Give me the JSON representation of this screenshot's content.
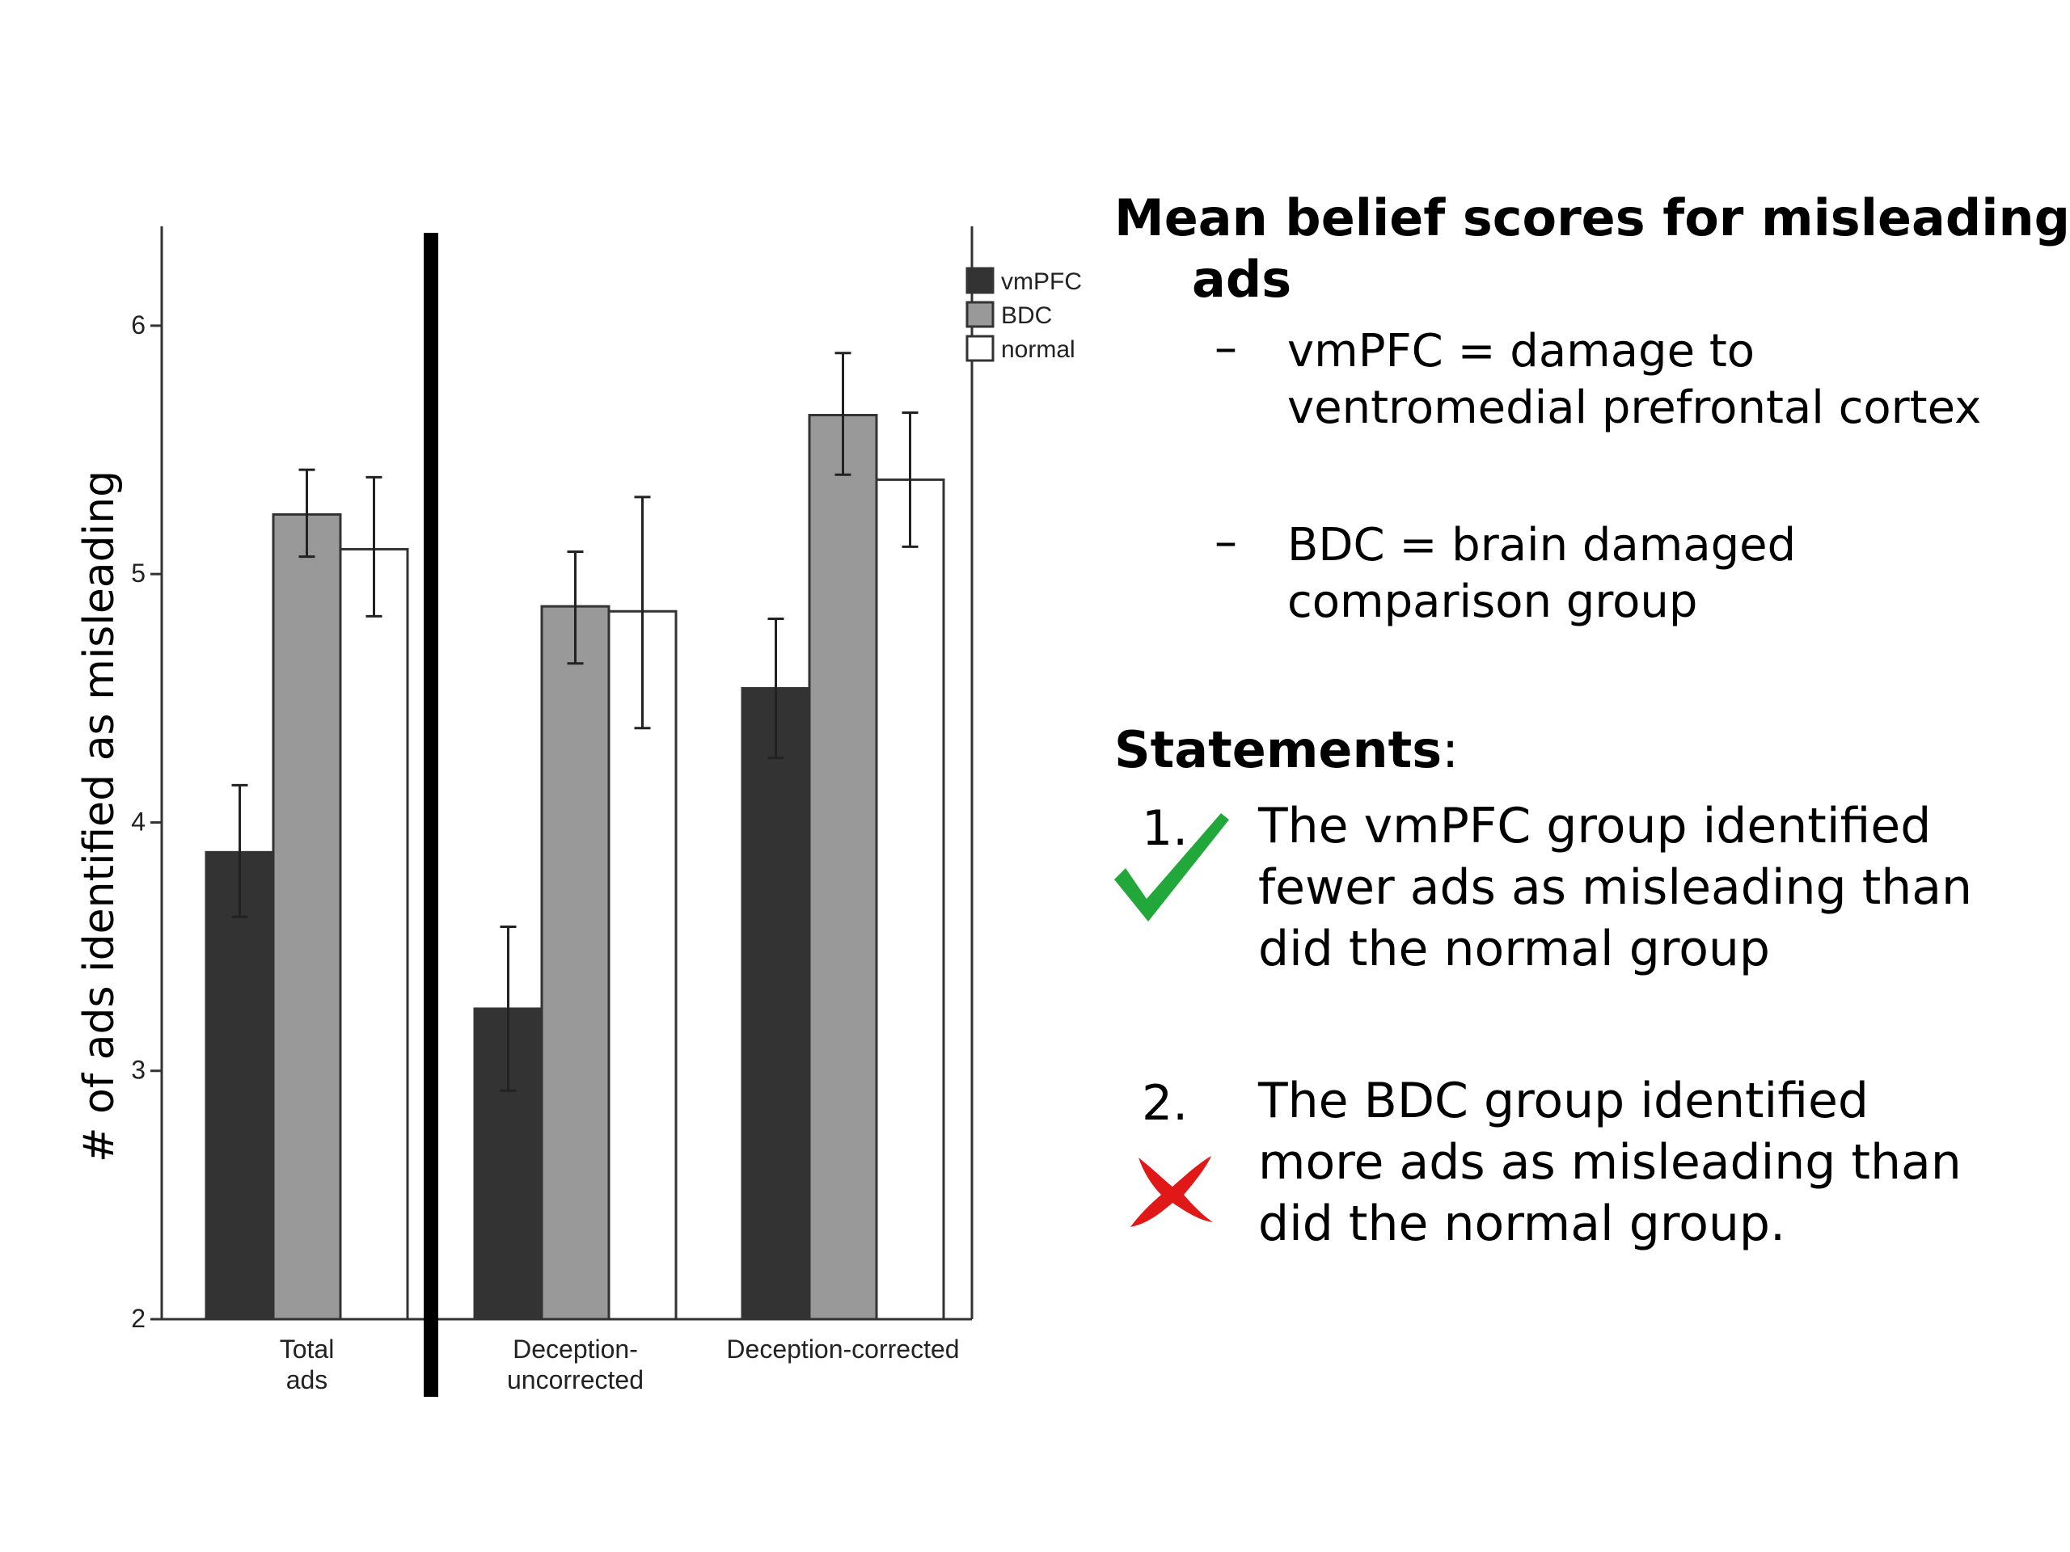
{
  "chart_data": {
    "type": "bar",
    "ylabel": "# of ads identified as misleading",
    "ylim": [
      2,
      6.4
    ],
    "yticks": [
      "2",
      "3",
      "4",
      "5",
      "6"
    ],
    "categories": [
      "Total ads",
      "Deception-uncorrected",
      "Deception-corrected"
    ],
    "category_labels": [
      [
        "Total",
        "ads"
      ],
      [
        "Deception-",
        "uncorrected"
      ],
      [
        "Deception-corrected"
      ]
    ],
    "series": [
      {
        "name": "vmPFC",
        "color": "#333333",
        "values": [
          3.88,
          3.25,
          4.54
        ],
        "err_low": [
          3.62,
          2.92,
          4.26
        ],
        "err_high": [
          4.15,
          3.58,
          4.82
        ]
      },
      {
        "name": "BDC",
        "color": "#999999",
        "values": [
          5.24,
          4.87,
          5.64
        ],
        "err_low": [
          5.07,
          4.64,
          5.4
        ],
        "err_high": [
          5.42,
          5.09,
          5.89
        ]
      },
      {
        "name": "normal",
        "color": "#ffffff",
        "values": [
          5.1,
          4.85,
          5.38
        ],
        "err_low": [
          4.83,
          4.38,
          5.11
        ],
        "err_high": [
          5.39,
          5.31,
          5.65
        ]
      }
    ],
    "legend_position": "top-right",
    "grid": false
  },
  "heading": {
    "line1": "Mean belief scores for misleading",
    "line2": "ads"
  },
  "definitions": [
    {
      "dash": "–",
      "lines": [
        "vmPFC = damage to",
        "ventromedial prefrontal cortex"
      ]
    },
    {
      "dash": "–",
      "lines": [
        "BDC = brain damaged",
        "comparison group"
      ]
    }
  ],
  "statements_heading": {
    "bold": "Statements",
    "rest": ":"
  },
  "statements": [
    {
      "number": "1.",
      "mark": "check-icon",
      "mark_color": "#22a83a",
      "lines": [
        "The vmPFC group identified",
        "fewer ads as misleading than",
        "did the normal group"
      ]
    },
    {
      "number": "2.",
      "mark": "cross-icon",
      "mark_color": "#e01818",
      "lines": [
        "The BDC group identified",
        "more ads as misleading than",
        "did the normal group."
      ]
    }
  ]
}
